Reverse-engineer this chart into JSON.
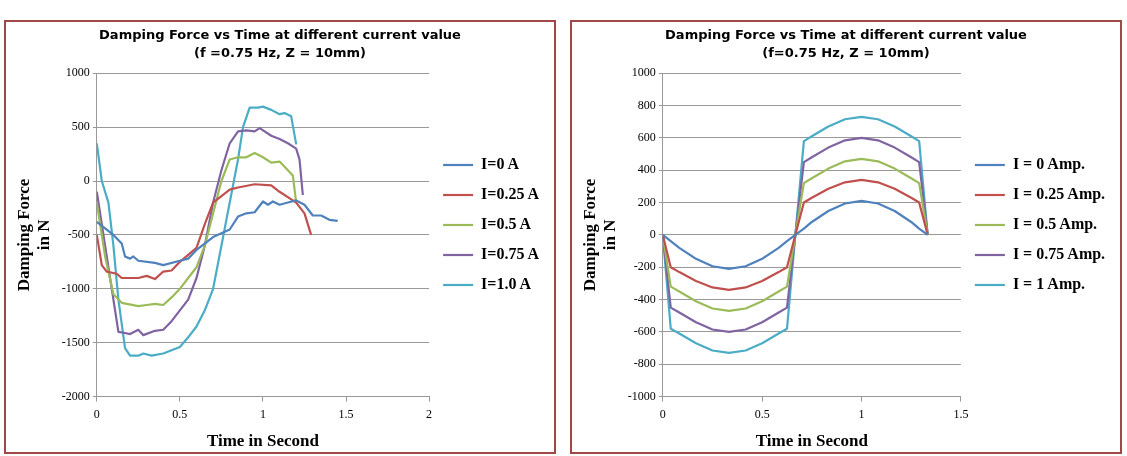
{
  "chart_data": [
    {
      "type": "line",
      "title": "Damping Force vs Time at different current value",
      "subtitle": "(f =0.75 Hz, Z = 10mm)",
      "xlabel": "Time in Second",
      "ylabel": "Damping Force in N",
      "xlim": [
        0,
        2
      ],
      "xticks": [
        0,
        0.5,
        1,
        1.5,
        2
      ],
      "ylim": [
        -2000,
        1000
      ],
      "yticks": [
        -2000,
        -1500,
        -1000,
        -500,
        0,
        500,
        1000
      ],
      "grid": "y",
      "legend": "right",
      "marker": "none",
      "line_style": "solid",
      "series": [
        {
          "name": "I=0 A",
          "color": "#4f81bd",
          "x": [
            0,
            0.1,
            0.15,
            0.17,
            0.2,
            0.22,
            0.25,
            0.35,
            0.4,
            0.5,
            0.55,
            0.6,
            0.7,
            0.8,
            0.85,
            0.9,
            0.95,
            1.0,
            1.03,
            1.06,
            1.1,
            1.15,
            1.2,
            1.25,
            1.3,
            1.35,
            1.4,
            1.45
          ],
          "values": [
            -380,
            -500,
            -580,
            -700,
            -720,
            -700,
            -740,
            -760,
            -780,
            -740,
            -720,
            -640,
            -520,
            -450,
            -330,
            -300,
            -290,
            -190,
            -220,
            -190,
            -220,
            -200,
            -180,
            -220,
            -320,
            -320,
            -360,
            -370
          ]
        },
        {
          "name": "I=0.25 A",
          "color": "#c0504d",
          "x": [
            0,
            0.03,
            0.06,
            0.12,
            0.15,
            0.25,
            0.3,
            0.35,
            0.4,
            0.45,
            0.5,
            0.6,
            0.65,
            0.7,
            0.75,
            0.8,
            0.85,
            0.95,
            1.05,
            1.1,
            1.15,
            1.2,
            1.25,
            1.29
          ],
          "values": [
            -500,
            -780,
            -840,
            -860,
            -900,
            -900,
            -880,
            -910,
            -840,
            -830,
            -750,
            -620,
            -400,
            -200,
            -140,
            -80,
            -60,
            -30,
            -40,
            -100,
            -150,
            -200,
            -300,
            -500
          ]
        },
        {
          "name": "I=0.5 A",
          "color": "#9bbb59",
          "x": [
            0,
            0.05,
            0.1,
            0.15,
            0.25,
            0.3,
            0.35,
            0.4,
            0.45,
            0.5,
            0.55,
            0.6,
            0.65,
            0.7,
            0.75,
            0.8,
            0.85,
            0.9,
            0.95,
            1.0,
            1.05,
            1.1,
            1.15,
            1.18,
            1.2
          ],
          "values": [
            -200,
            -700,
            -1050,
            -1130,
            -1160,
            -1150,
            -1140,
            -1150,
            -1080,
            -1000,
            -900,
            -800,
            -600,
            -300,
            0,
            200,
            220,
            220,
            260,
            220,
            170,
            180,
            100,
            50,
            -200
          ]
        },
        {
          "name": "I=0.75 A",
          "color": "#8064a2",
          "x": [
            0,
            0.05,
            0.1,
            0.13,
            0.17,
            0.2,
            0.25,
            0.28,
            0.35,
            0.4,
            0.45,
            0.5,
            0.55,
            0.6,
            0.65,
            0.7,
            0.75,
            0.8,
            0.85,
            0.9,
            0.95,
            0.98,
            1.05,
            1.1,
            1.15,
            1.2,
            1.22,
            1.24
          ],
          "values": [
            -100,
            -600,
            -1100,
            -1400,
            -1410,
            -1420,
            -1380,
            -1430,
            -1390,
            -1380,
            -1300,
            -1200,
            -1100,
            -900,
            -600,
            -200,
            100,
            350,
            460,
            470,
            460,
            490,
            420,
            390,
            350,
            300,
            200,
            -130
          ]
        },
        {
          "name": "I=1.0 A",
          "color": "#4bacc6",
          "x": [
            0,
            0.03,
            0.07,
            0.1,
            0.13,
            0.17,
            0.2,
            0.25,
            0.28,
            0.33,
            0.4,
            0.5,
            0.55,
            0.6,
            0.65,
            0.7,
            0.75,
            0.8,
            0.85,
            0.88,
            0.92,
            0.97,
            1.0,
            1.05,
            1.1,
            1.13,
            1.17,
            1.2
          ],
          "values": [
            350,
            0,
            -200,
            -600,
            -1100,
            -1550,
            -1620,
            -1620,
            -1600,
            -1620,
            -1600,
            -1540,
            -1450,
            -1350,
            -1200,
            -1000,
            -600,
            -200,
            200,
            500,
            680,
            680,
            690,
            660,
            620,
            630,
            600,
            340
          ]
        }
      ]
    },
    {
      "type": "line",
      "title": "Damping Force vs Time at different current value",
      "subtitle": "(f=0.75 Hz, Z = 10mm)",
      "xlabel": "Time in Second",
      "ylabel": "Damping Force in N",
      "xlim": [
        0,
        1.5
      ],
      "xticks": [
        0,
        0.5,
        1,
        1.5
      ],
      "ylim": [
        -1000,
        1000
      ],
      "yticks": [
        -1000,
        -800,
        -600,
        -400,
        -200,
        0,
        200,
        400,
        600,
        800,
        1000
      ],
      "grid": "y",
      "legend": "right",
      "marker": "none",
      "line_style": "solid",
      "x": [
        0,
        0.04,
        0.083,
        0.167,
        0.25,
        0.333,
        0.417,
        0.5,
        0.583,
        0.625,
        0.667,
        0.71,
        0.75,
        0.833,
        0.917,
        1.0,
        1.083,
        1.167,
        1.25,
        1.29,
        1.333
      ],
      "series": [
        {
          "name": "I = 0 Amp.",
          "color": "#4f81bd",
          "values": [
            0,
            -39,
            -80,
            -148,
            -194,
            -210,
            -194,
            -148,
            -80,
            -39,
            0,
            39,
            80,
            148,
            194,
            210,
            194,
            148,
            80,
            39,
            0
          ]
        },
        {
          "name": "I = 0.25 Amp.",
          "color": "#c0504d",
          "values": [
            0,
            -200,
            -230,
            -285,
            -325,
            -340,
            -325,
            -285,
            -230,
            -200,
            0,
            200,
            230,
            285,
            325,
            340,
            325,
            285,
            230,
            200,
            0
          ]
        },
        {
          "name": "I = 0.5 Amp.",
          "color": "#9bbb59",
          "values": [
            0,
            -320,
            -350,
            -410,
            -455,
            -470,
            -455,
            -410,
            -350,
            -320,
            0,
            320,
            350,
            410,
            455,
            470,
            455,
            410,
            350,
            320,
            0
          ]
        },
        {
          "name": "I = 0.75 Amp.",
          "color": "#8064a2",
          "values": [
            0,
            -450,
            -480,
            -540,
            -585,
            -600,
            -585,
            -540,
            -480,
            -450,
            0,
            450,
            480,
            540,
            585,
            600,
            585,
            540,
            480,
            450,
            0
          ]
        },
        {
          "name": "I = 1 Amp.",
          "color": "#4bacc6",
          "values": [
            0,
            -580,
            -610,
            -670,
            -715,
            -730,
            -715,
            -670,
            -610,
            -580,
            0,
            580,
            610,
            670,
            715,
            730,
            715,
            670,
            610,
            580,
            0
          ]
        }
      ]
    }
  ]
}
